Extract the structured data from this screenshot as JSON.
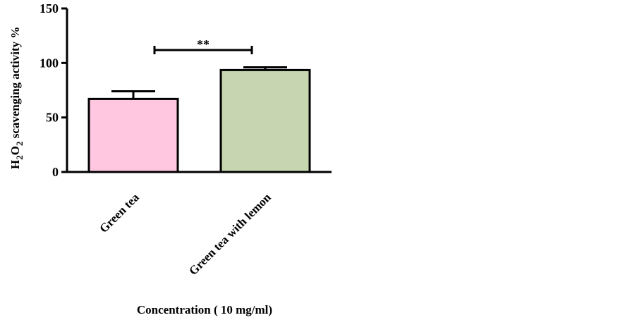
{
  "chart_data": {
    "type": "bar",
    "categories": [
      "Green tea",
      "Green tea with lemon"
    ],
    "values": [
      67,
      93.5
    ],
    "errors": [
      7,
      2.5
    ],
    "bar_colors": [
      "#ffc8e0",
      "#c7d6b0"
    ],
    "ylim": [
      0,
      150
    ],
    "yticks": [
      "0",
      "50",
      "100",
      "150"
    ],
    "ytick_values": [
      0,
      50,
      100,
      150
    ],
    "ylabel_parts": {
      "h": "H",
      "sub1": "2",
      "o": "O",
      "sub2": "2",
      "rest": " scavenging activity  %"
    },
    "xlabel": "Concentration ( 10 mg/ml)",
    "significance": {
      "between": [
        0,
        1
      ],
      "label": "**",
      "y": 113
    },
    "grid": false
  }
}
